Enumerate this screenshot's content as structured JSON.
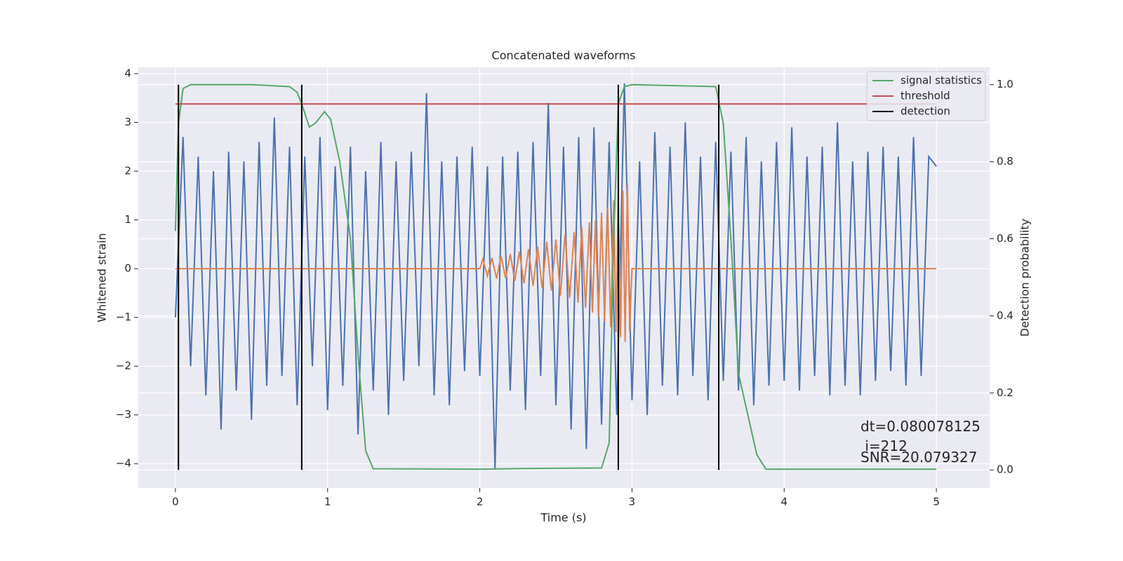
{
  "chart_data": {
    "type": "line",
    "title": "Concatenated waveforms",
    "xlabel": "Time (s)",
    "ylabel": "Whitened strain",
    "y2label": "Detection probability",
    "xlim": [
      -0.244,
      5.35
    ],
    "ylim": [
      -4.5,
      4.13
    ],
    "y2lim": [
      -0.047,
      1.045
    ],
    "xticks": [
      0,
      1,
      2,
      3,
      4,
      5
    ],
    "yticks": [
      {
        "value": -4,
        "label": "−4"
      },
      {
        "value": -3,
        "label": "−3"
      },
      {
        "value": -2,
        "label": "−2"
      },
      {
        "value": -1,
        "label": "−1"
      },
      0,
      1,
      2,
      3,
      4
    ],
    "y2ticks": [
      {
        "value": 0,
        "label": "0.0"
      },
      0.2,
      0.4,
      0.6,
      0.8,
      {
        "value": 1,
        "label": "1.0"
      }
    ],
    "grid": true,
    "legend": "upper right",
    "series": [
      {
        "color": "#4c72b0",
        "x": [
          0,
          0.05,
          0.1,
          0.15,
          0.2,
          0.25,
          0.3,
          0.35,
          0.4,
          0.45,
          0.5,
          0.55,
          0.6,
          0.65,
          0.7,
          0.75,
          0.8,
          0.85,
          0.9,
          0.95,
          1,
          1.05,
          1.1,
          1.15,
          1.2,
          1.25,
          1.3,
          1.35,
          1.4,
          1.45,
          1.5,
          1.55,
          1.6,
          1.65,
          1.7,
          1.75,
          1.8,
          1.85,
          1.9,
          1.95,
          2,
          2.05,
          2.1,
          2.15,
          2.2,
          2.25,
          2.3,
          2.35,
          2.4,
          2.45,
          2.5,
          2.55,
          2.6,
          2.65,
          2.7,
          2.75,
          2.8,
          2.85,
          2.9,
          2.95,
          3,
          3.05,
          3.1,
          3.15,
          3.2,
          3.25,
          3.3,
          3.35,
          3.4,
          3.45,
          3.5,
          3.55,
          3.6,
          3.65,
          3.7,
          3.75,
          3.8,
          3.85,
          3.9,
          3.95,
          4,
          4.05,
          4.1,
          4.15,
          4.2,
          4.25,
          4.3,
          4.35,
          4.4,
          4.45,
          4.5,
          4.55,
          4.6,
          4.65,
          4.7,
          4.75,
          4.8,
          4.85,
          4.9,
          4.95,
          5
        ],
        "values": [
          -1.0,
          2.7,
          -2.0,
          2.3,
          -2.6,
          2.0,
          -3.3,
          2.4,
          -2.5,
          2.2,
          -3.1,
          2.6,
          -2.4,
          3.1,
          -2.2,
          2.5,
          -2.8,
          2.3,
          -2.0,
          2.7,
          -2.9,
          2.1,
          -2.4,
          2.5,
          -3.4,
          2.0,
          -2.5,
          2.6,
          -3.0,
          2.2,
          -2.3,
          2.4,
          -2.0,
          3.6,
          -2.6,
          2.2,
          -2.8,
          2.3,
          -2.1,
          2.5,
          -2.2,
          2.1,
          -4.1,
          2.3,
          -2.5,
          2.4,
          -2.9,
          2.6,
          -2.2,
          3.4,
          -2.8,
          2.5,
          -3.3,
          2.7,
          -3.7,
          2.9,
          -3.2,
          2.6,
          -3.0,
          3.8,
          -2.7,
          2.2,
          -3.0,
          2.8,
          -2.4,
          2.5,
          -2.6,
          3.0,
          -2.2,
          2.3,
          -2.7,
          2.6,
          -2.3,
          2.4,
          -2.5,
          2.7,
          -2.8,
          2.2,
          -2.4,
          2.6,
          -2.3,
          2.9,
          -2.5,
          2.3,
          -2.2,
          2.5,
          -2.6,
          3.0,
          -2.4,
          2.2,
          -2.6,
          2.4,
          -2.3,
          2.5,
          -2.1,
          2.3,
          -2.4,
          2.7,
          -2.2,
          2.3,
          2.1
        ]
      },
      {
        "color": "#dd8452",
        "x": [
          0,
          2,
          2.02,
          2.05,
          2.08,
          2.11,
          2.14,
          2.17,
          2.2,
          2.23,
          2.26,
          2.29,
          2.32,
          2.35,
          2.38,
          2.41,
          2.44,
          2.47,
          2.5,
          2.53,
          2.56,
          2.59,
          2.62,
          2.645,
          2.67,
          2.695,
          2.72,
          2.74,
          2.76,
          2.78,
          2.8,
          2.82,
          2.84,
          2.86,
          2.88,
          2.895,
          2.91,
          2.925,
          2.94,
          2.955,
          2.97,
          2.985,
          3,
          5
        ],
        "values": [
          0,
          0,
          0.2,
          -0.15,
          0.22,
          -0.2,
          0.25,
          -0.2,
          0.3,
          -0.25,
          0.35,
          -0.3,
          0.4,
          -0.35,
          0.45,
          -0.4,
          0.55,
          -0.45,
          0.6,
          -0.55,
          0.7,
          -0.6,
          0.75,
          -0.7,
          0.85,
          -0.8,
          0.95,
          -0.9,
          1.0,
          -1.0,
          1.15,
          -1.1,
          1.25,
          -1.2,
          1.4,
          -1.3,
          1.5,
          -1.4,
          1.6,
          -1.5,
          1.75,
          -1.3,
          0,
          0
        ]
      },
      {
        "name": "signal statistics",
        "color": "#55a868",
        "axis": "y2",
        "x": [
          0,
          0.02,
          0.05,
          0.1,
          0.5,
          0.75,
          0.8,
          0.83,
          0.88,
          0.92,
          0.98,
          1.02,
          1.08,
          1.15,
          1.2,
          1.25,
          1.3,
          2,
          2.35,
          2.8,
          2.85,
          2.88,
          2.91,
          2.95,
          3,
          3.55,
          3.6,
          3.65,
          3.7,
          3.78,
          3.82,
          3.88,
          5
        ],
        "values": [
          0.62,
          0.9,
          0.99,
          1.0,
          1.0,
          0.995,
          0.98,
          0.95,
          0.89,
          0.9,
          0.93,
          0.91,
          0.8,
          0.6,
          0.3,
          0.05,
          0.003,
          0.002,
          0.004,
          0.005,
          0.07,
          0.6,
          0.95,
          0.995,
          1.0,
          0.995,
          0.9,
          0.6,
          0.25,
          0.11,
          0.04,
          0.002,
          0.002
        ]
      },
      {
        "name": "threshold",
        "color": "#c44e52",
        "axis": "y2",
        "x": [
          0,
          5
        ],
        "values": [
          0.95,
          0.95
        ]
      },
      {
        "name": "detection",
        "color": "#000000",
        "axis": "y2",
        "kind": "vline",
        "x": [
          0.02,
          0.83,
          2.91,
          3.57
        ],
        "ymin": 0,
        "ymax": 1
      }
    ],
    "annotations": [
      "dt=0.080078125",
      " i=212",
      "SNR=20.079327"
    ]
  }
}
